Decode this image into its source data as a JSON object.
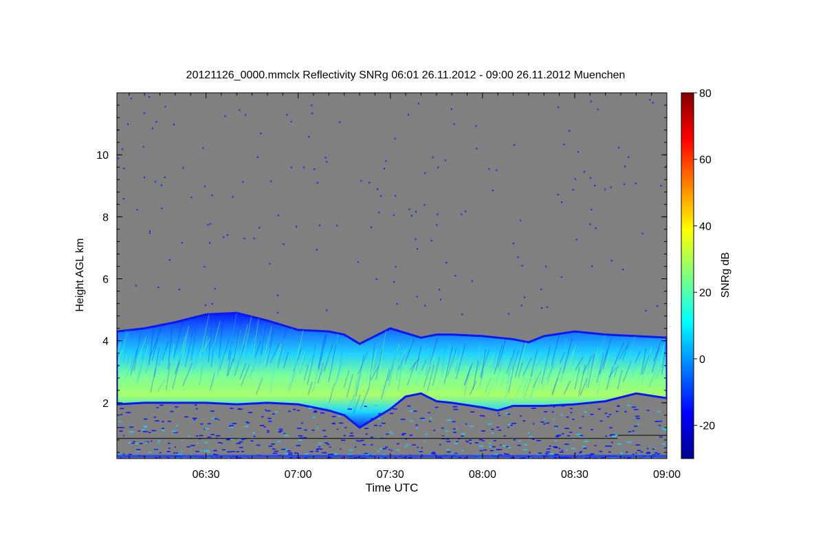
{
  "chart_data": {
    "type": "heatmap",
    "title": "20121126_0000.mmclx Reflectivity SNRg   06:01 26.11.2012 - 09:00 26.11.2012 Muenchen",
    "xlabel": "Time UTC",
    "ylabel": "Height AGL km",
    "xlim": [
      "06:01",
      "09:00"
    ],
    "ylim": [
      0.2,
      12.0
    ],
    "x_ticks": [
      "06:30",
      "07:00",
      "07:30",
      "08:00",
      "08:30",
      "09:00"
    ],
    "y_ticks": [
      2,
      4,
      6,
      8,
      10
    ],
    "colorbar": {
      "label": "SNRg dB",
      "range": [
        -30,
        80
      ],
      "ticks": [
        -20,
        0,
        20,
        40,
        60,
        80
      ],
      "colormap": "jet"
    },
    "background_color": "#808080",
    "cloud_layer": {
      "top_km": [
        [
          "06:01",
          4.3
        ],
        [
          "06:10",
          4.4
        ],
        [
          "06:20",
          4.6
        ],
        [
          "06:30",
          4.85
        ],
        [
          "06:40",
          4.9
        ],
        [
          "06:50",
          4.65
        ],
        [
          "07:00",
          4.35
        ],
        [
          "07:10",
          4.3
        ],
        [
          "07:15",
          4.2
        ],
        [
          "07:20",
          3.9
        ],
        [
          "07:30",
          4.4
        ],
        [
          "07:40",
          4.1
        ],
        [
          "07:45",
          4.2
        ],
        [
          "07:50",
          4.2
        ],
        [
          "08:00",
          4.15
        ],
        [
          "08:10",
          4.05
        ],
        [
          "08:15",
          3.95
        ],
        [
          "08:20",
          4.15
        ],
        [
          "08:30",
          4.3
        ],
        [
          "08:40",
          4.2
        ],
        [
          "08:50",
          4.15
        ],
        [
          "09:00",
          4.1
        ]
      ],
      "base_km": [
        [
          "06:01",
          1.95
        ],
        [
          "06:10",
          2.0
        ],
        [
          "06:20",
          2.0
        ],
        [
          "06:30",
          2.0
        ],
        [
          "06:40",
          1.95
        ],
        [
          "06:50",
          2.0
        ],
        [
          "07:00",
          1.95
        ],
        [
          "07:10",
          1.75
        ],
        [
          "07:15",
          1.6
        ],
        [
          "07:20",
          1.2
        ],
        [
          "07:25",
          1.5
        ],
        [
          "07:30",
          1.8
        ],
        [
          "07:35",
          2.2
        ],
        [
          "07:40",
          2.3
        ],
        [
          "07:45",
          2.05
        ],
        [
          "07:50",
          2.0
        ],
        [
          "08:00",
          1.85
        ],
        [
          "08:05",
          1.75
        ],
        [
          "08:10",
          1.9
        ],
        [
          "08:20",
          1.9
        ],
        [
          "08:30",
          1.95
        ],
        [
          "08:40",
          2.05
        ],
        [
          "08:50",
          2.3
        ],
        [
          "09:00",
          2.15
        ]
      ],
      "core_snr_db": 25
    },
    "near_surface_clutter_km": [
      0.2,
      1.0
    ]
  }
}
